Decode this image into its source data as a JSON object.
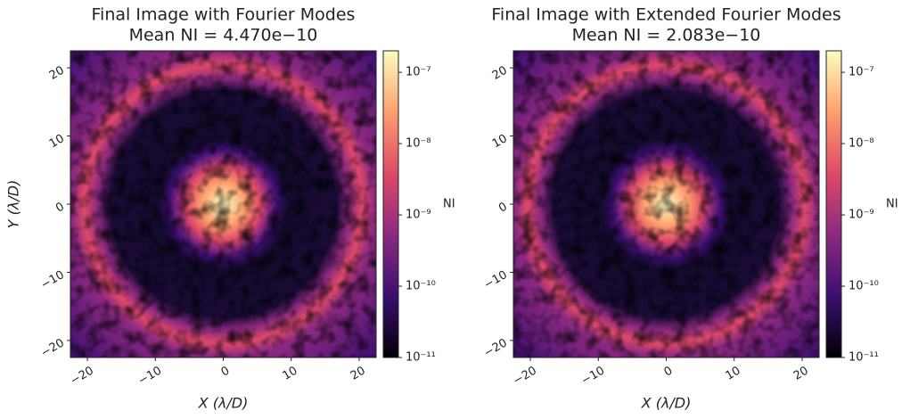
{
  "chart_data": [
    {
      "type": "heatmap",
      "title": "Final Image with Fourier Modes",
      "subtitle": "Mean NI = 4.470e−10",
      "xlabel": "X (λ/D)",
      "ylabel": "Y (λ/D)",
      "xlim": [
        -22.5,
        22.5
      ],
      "ylim": [
        -22.5,
        22.5
      ],
      "xticks": [
        {
          "value": -20,
          "label": "−20"
        },
        {
          "value": -10,
          "label": "−10"
        },
        0,
        10,
        20
      ],
      "yticks": [
        {
          "value": -20,
          "label": "−20"
        },
        {
          "value": -10,
          "label": "−10"
        },
        0,
        10,
        20
      ],
      "colorbar": {
        "label": "NI",
        "log": true,
        "clim": [
          1e-11,
          2e-07
        ],
        "ticks": [
          {
            "value": 1e-11,
            "label": "10⁻¹¹"
          },
          {
            "value": 1e-10,
            "label": "10⁻¹⁰"
          },
          {
            "value": 1e-09,
            "label": "10⁻⁹"
          },
          {
            "value": 1e-08,
            "label": "10⁻⁸"
          },
          {
            "value": 1e-07,
            "label": "10⁻⁷"
          }
        ],
        "colors": [
          "#000004",
          "#3b0f70",
          "#8c2981",
          "#de4968",
          "#fe9f6d",
          "#fcfdbf"
        ]
      }
    },
    {
      "type": "heatmap",
      "title": "Final Image with Extended Fourier Modes",
      "subtitle": "Mean NI = 2.083e−10",
      "xlabel": "X (λ/D)",
      "xlim": [
        -22.5,
        22.5
      ],
      "ylim": [
        -22.5,
        22.5
      ],
      "xticks": [
        {
          "value": -20,
          "label": "−20"
        },
        {
          "value": -10,
          "label": "−10"
        },
        0,
        10,
        20
      ],
      "yticks": [
        {
          "value": -20,
          "label": "−20"
        },
        {
          "value": -10,
          "label": "−10"
        },
        0,
        10,
        20
      ],
      "colorbar": {
        "label": "NI",
        "log": true,
        "clim": [
          1e-11,
          2e-07
        ],
        "ticks": [
          {
            "value": 1e-11,
            "label": "10⁻¹¹"
          },
          {
            "value": 1e-10,
            "label": "10⁻¹⁰"
          },
          {
            "value": 1e-09,
            "label": "10⁻⁹"
          },
          {
            "value": 1e-08,
            "label": "10⁻⁸"
          },
          {
            "value": 1e-07,
            "label": "10⁻⁷"
          }
        ],
        "colors": [
          "#000004",
          "#3b0f70",
          "#8c2981",
          "#de4968",
          "#fe9f6d",
          "#fcfdbf"
        ]
      }
    }
  ]
}
